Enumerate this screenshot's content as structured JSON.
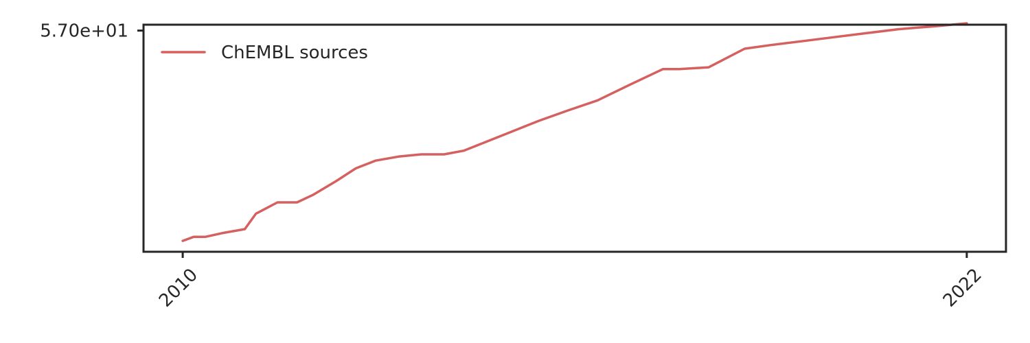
{
  "chart_data": {
    "type": "line",
    "title": "",
    "xlabel": "",
    "ylabel": "",
    "xlim": [
      2009.4,
      2022.6
    ],
    "ylim": [
      8.2,
      58.3
    ],
    "x_ticks": [
      2010,
      2022
    ],
    "x_tick_labels": [
      "2010",
      "2022"
    ],
    "y_ticks": [
      57
    ],
    "y_tick_labels": [
      "5.70e+01"
    ],
    "grid": false,
    "legend_position": "top-left",
    "series": [
      {
        "name": "ChEMBL sources",
        "color": "#d65f5f",
        "x": [
          2010.0,
          2010.17,
          2010.35,
          2010.6,
          2010.95,
          2011.12,
          2011.45,
          2011.75,
          2012.0,
          2012.35,
          2012.65,
          2012.95,
          2013.3,
          2013.65,
          2014.0,
          2014.3,
          2014.65,
          2015.0,
          2015.45,
          2015.9,
          2016.35,
          2016.85,
          2017.35,
          2017.6,
          2018.05,
          2018.6,
          2019.0,
          2019.5,
          2020.0,
          2020.5,
          2020.95,
          2021.2,
          2021.55,
          2022.0
        ],
        "y": [
          10.6,
          11.5,
          11.5,
          12.3,
          13.2,
          16.6,
          19.1,
          19.1,
          20.8,
          23.8,
          26.6,
          28.3,
          29.2,
          29.7,
          29.7,
          30.5,
          32.5,
          34.5,
          37.1,
          39.4,
          41.6,
          45.1,
          48.5,
          48.5,
          48.9,
          53.0,
          53.8,
          54.7,
          55.6,
          56.5,
          57.3,
          57.6,
          58.0,
          58.6
        ]
      }
    ]
  }
}
